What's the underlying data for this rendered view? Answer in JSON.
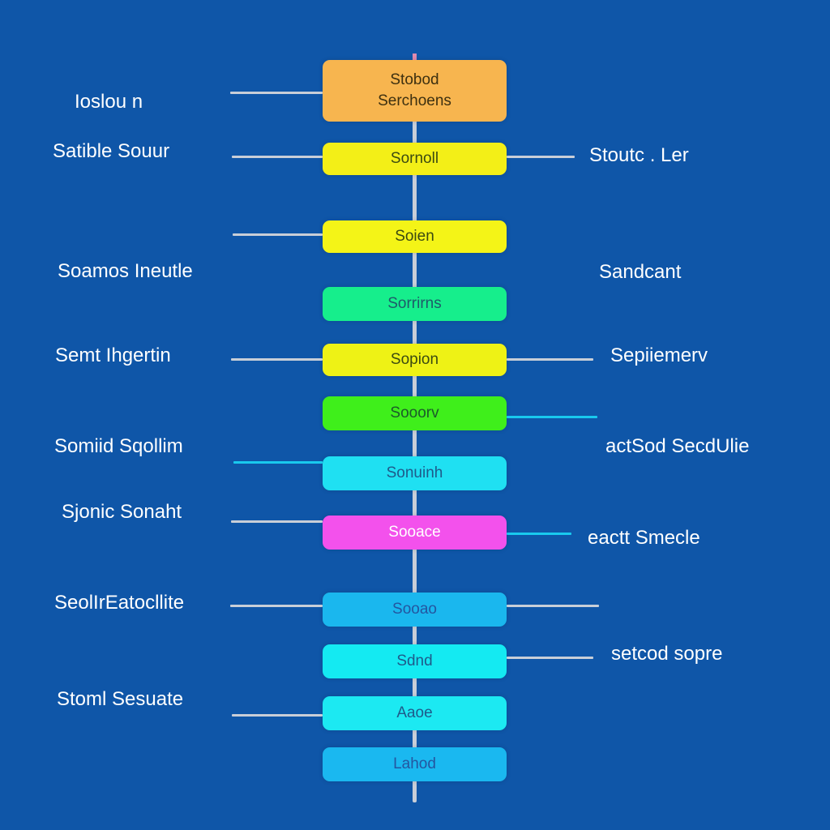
{
  "stages": [
    {
      "lines": [
        "Stobod",
        "Serchoens"
      ],
      "fill": "#f7b54f",
      "text_color": "#3d3010"
    },
    {
      "lines": [
        "Sornoll"
      ],
      "fill": "#f3ef17",
      "text_color": "#3b4a12"
    },
    {
      "lines": [
        "Soien"
      ],
      "fill": "#f4f417",
      "text_color": "#3b4a12"
    },
    {
      "lines": [
        "Sorrirns"
      ],
      "fill": "#16ee8c",
      "text_color": "#1f5a6a"
    },
    {
      "lines": [
        "Sopion"
      ],
      "fill": "#eef215",
      "text_color": "#3b4a12"
    },
    {
      "lines": [
        "Sooorv"
      ],
      "fill": "#3fef1b",
      "text_color": "#1b5b2a"
    },
    {
      "lines": [
        "Sonuinh"
      ],
      "fill": "#1fe0f2",
      "text_color": "#1f5a8a"
    },
    {
      "lines": [
        "Sooace"
      ],
      "fill": "#f351ec",
      "text_color": "#ffffff"
    },
    {
      "lines": [
        "Sooao"
      ],
      "fill": "#1ab7ee",
      "text_color": "#2456a0"
    },
    {
      "lines": [
        "Sdnd"
      ],
      "fill": "#14eaf2",
      "text_color": "#1f5a8a"
    },
    {
      "lines": [
        "Aaoe"
      ],
      "fill": "#1ce9f2",
      "text_color": "#1f5a8a"
    },
    {
      "lines": [
        "Lahod"
      ],
      "fill": "#1ab8f0",
      "text_color": "#2456a0"
    }
  ],
  "left_labels": [
    "Ioslou n",
    "Satible Souur",
    "Soamos Ineutle",
    "Semt Ihgertin",
    "Somiid  Sqollim",
    "Sjonic Sonaht",
    "SeolIrEatocllite",
    "Stoml Sesuate"
  ],
  "right_labels": [
    "Stoutc . Ler",
    "Sandcant",
    "Sepiiemerv",
    "actSod SecdUlie",
    "eactt Smecle",
    "setcod sopre"
  ],
  "colors": {
    "background": "#0f56a8",
    "connector_gray": "#c8ced8",
    "connector_cyan": "#19c9ee"
  }
}
